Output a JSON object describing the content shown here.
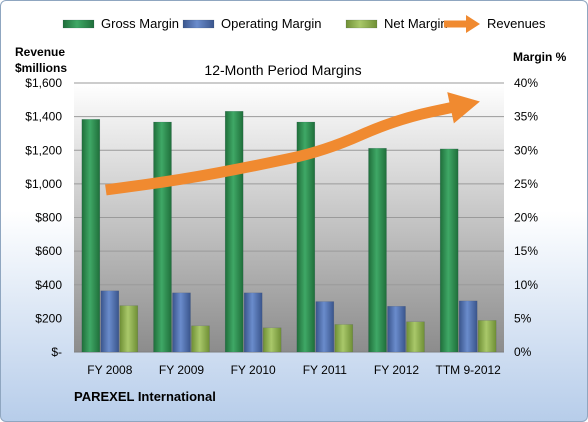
{
  "footer": {
    "company": "PAREXEL International"
  },
  "chart_data": {
    "type": "bar",
    "title": "12-Month Period Margins",
    "ylabel_left": [
      "Revenue",
      "$millions"
    ],
    "ylabel_right": "Margin %",
    "categories": [
      "FY 2008",
      "FY 2009",
      "FY 2010",
      "FY 2011",
      "FY 2012",
      "TTM 9-2012"
    ],
    "left_axis": {
      "min": 0,
      "max": 1600,
      "step": 200,
      "ticks": [
        "$-",
        "$200",
        "$400",
        "$600",
        "$800",
        "$1,000",
        "$1,200",
        "$1,400",
        "$1,600"
      ]
    },
    "right_axis": {
      "min": 0,
      "max": 40,
      "step": 5,
      "ticks": [
        "0%",
        "5%",
        "10%",
        "15%",
        "20%",
        "25%",
        "30%",
        "35%",
        "40%"
      ]
    },
    "series": [
      {
        "name": "Gross Margin",
        "axis": "right",
        "kind": "bar",
        "color": "#2e8b4f",
        "values": [
          34.6,
          34.2,
          35.8,
          34.2,
          30.3,
          30.2
        ]
      },
      {
        "name": "Operating Margin",
        "axis": "right",
        "kind": "bar",
        "color": "#4f6fae",
        "values": [
          9.1,
          8.8,
          8.8,
          7.5,
          6.8,
          7.6
        ]
      },
      {
        "name": "Net Margin",
        "axis": "right",
        "kind": "bar",
        "color": "#8fb04f",
        "values": [
          6.9,
          3.9,
          3.6,
          4.1,
          4.5,
          4.7
        ]
      },
      {
        "name": "Revenues",
        "axis": "left",
        "kind": "arrow",
        "color": "#f08a30",
        "values": [
          964,
          1025,
          1105,
          1195,
          1385,
          1475
        ]
      }
    ],
    "grid": "horizontal",
    "legend_position": "top"
  }
}
